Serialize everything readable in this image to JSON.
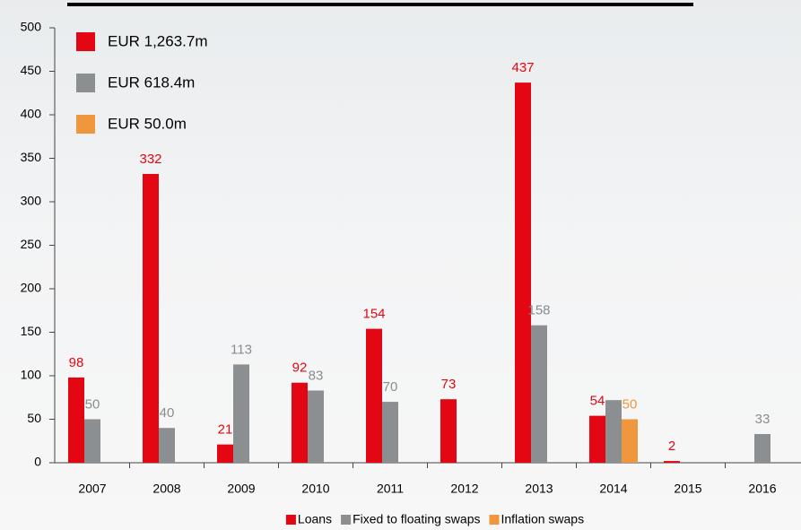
{
  "chart_data": {
    "type": "bar",
    "categories": [
      "2007",
      "2008",
      "2009",
      "2010",
      "2011",
      "2012",
      "2013",
      "2014",
      "2015",
      "2016"
    ],
    "series": [
      {
        "name": "Loans",
        "color": "#e30613",
        "label_color": "#e30613",
        "values": [
          98,
          332,
          21,
          92,
          154,
          73,
          437,
          54,
          2,
          null
        ],
        "value_labels": [
          "98",
          "332",
          "21",
          "92",
          "154",
          "73",
          "437",
          "54",
          "2",
          null
        ]
      },
      {
        "name": "Fixed to floating swaps",
        "color": "#8c8f91",
        "label_color": "#8a8c8e",
        "values": [
          50,
          40,
          113,
          83,
          70,
          null,
          158,
          72,
          null,
          33
        ],
        "value_labels": [
          "50",
          "40",
          "113",
          "83",
          "70",
          null,
          "158",
          null,
          null,
          "33"
        ]
      },
      {
        "name": "Inflation swaps",
        "color": "#f0963c",
        "label_color": "#f0963c",
        "values": [
          null,
          null,
          null,
          null,
          null,
          null,
          null,
          50,
          null,
          null
        ],
        "value_labels": [
          null,
          null,
          null,
          null,
          null,
          null,
          null,
          "50",
          null,
          null
        ]
      }
    ],
    "annotations": [
      {
        "text": "EUR 1,263.7m",
        "color": "#e30613"
      },
      {
        "text": "EUR 618.4m",
        "color": "#8c8f91"
      },
      {
        "text": "EUR 50.0m",
        "color": "#f0963c"
      }
    ],
    "ylim": [
      0,
      500
    ],
    "yticks": [
      0,
      50,
      100,
      150,
      200,
      250,
      300,
      350,
      400,
      450,
      500
    ],
    "legend": "bottom"
  }
}
